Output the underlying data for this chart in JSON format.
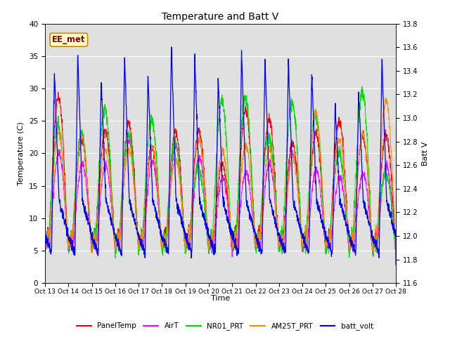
{
  "title": "Temperature and Batt V",
  "ylabel_left": "Temperature (C)",
  "ylabel_right": "Batt V",
  "xlabel": "Time",
  "annotation": "EE_met",
  "ylim_left": [
    0,
    40
  ],
  "ylim_right": [
    11.6,
    13.8
  ],
  "xtick_labels": [
    "Oct 13",
    "Oct 14",
    "Oct 15",
    "Oct 16",
    "Oct 17",
    "Oct 18",
    "Oct 19",
    "Oct 20",
    "Oct 21",
    "Oct 22",
    "Oct 23",
    "Oct 24",
    "Oct 25",
    "Oct 26",
    "Oct 27",
    "Oct 28"
  ],
  "background_color": "#e0e0e0",
  "line_colors": {
    "PanelTemp": "#ff0000",
    "AirT": "#ff00ff",
    "NR01_PRT": "#00dd00",
    "AM25T_PRT": "#ff8800",
    "batt_volt": "#0000ff"
  },
  "legend_labels": [
    "PanelTemp",
    "AirT",
    "NR01_PRT",
    "AM25T_PRT",
    "batt_volt"
  ]
}
